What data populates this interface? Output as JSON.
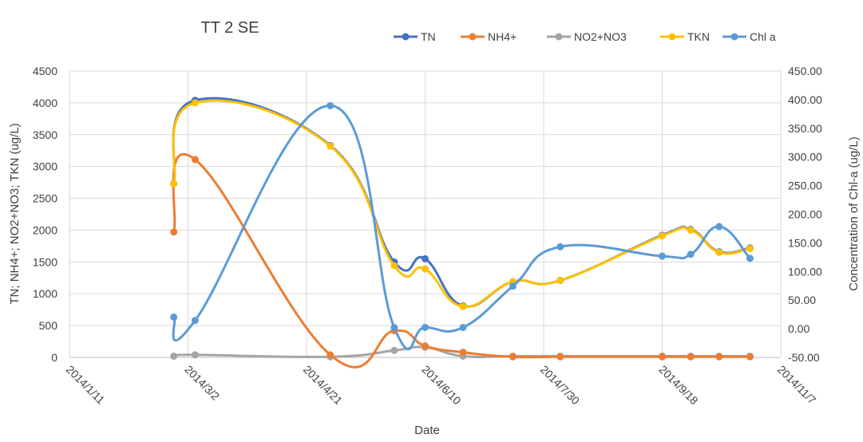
{
  "chart_data": {
    "type": "line",
    "title": "TT 2 SE",
    "xlabel": "Date",
    "ylabel": "TN; NH4+; NO2+NO3; TKN (ug/L)",
    "y2label": "Concentration of Chl-a (ug/L)",
    "x_ticks": [
      "2014/1/11",
      "2014/3/2",
      "2014/4/21",
      "2014/6/10",
      "2014/7/30",
      "2014/9/18",
      "2014/11/7"
    ],
    "ylim": [
      0,
      4500
    ],
    "y_ticks": [
      "0",
      "500",
      "1000",
      "1500",
      "2000",
      "2500",
      "3000",
      "3500",
      "4000",
      "4500"
    ],
    "y2lim": [
      -50,
      450
    ],
    "y2_ticks": [
      "-50.00",
      "0.00",
      "50.00",
      "100.00",
      "150.00",
      "200.00",
      "250.00",
      "300.00",
      "350.00",
      "400.00",
      "450.00"
    ],
    "grid": true,
    "legend_position": "top-right",
    "series": [
      {
        "name": "TN",
        "axis": "left",
        "color": "#4472C4",
        "points": [
          {
            "x": "2014/2/24",
            "y": 2730
          },
          {
            "x": "2014/3/5",
            "y": 4040
          },
          {
            "x": "2014/5/1",
            "y": 3330
          },
          {
            "x": "2014/5/28",
            "y": 1500
          },
          {
            "x": "2014/6/10",
            "y": 1550
          },
          {
            "x": "2014/6/26",
            "y": 810
          },
          {
            "x": "2014/7/17",
            "y": 1190
          },
          {
            "x": "2014/8/6",
            "y": 1210
          },
          {
            "x": "2014/9/18",
            "y": 1920
          },
          {
            "x": "2014/9/30",
            "y": 2010
          },
          {
            "x": "2014/10/12",
            "y": 1660
          },
          {
            "x": "2014/10/25",
            "y": 1720
          }
        ]
      },
      {
        "name": "NH4+",
        "axis": "left",
        "color": "#ED7D31",
        "points": [
          {
            "x": "2014/2/24",
            "y": 1970
          },
          {
            "x": "2014/3/5",
            "y": 3110
          },
          {
            "x": "2014/5/1",
            "y": 40
          },
          {
            "x": "2014/5/28",
            "y": 420
          },
          {
            "x": "2014/6/10",
            "y": 180
          },
          {
            "x": "2014/6/26",
            "y": 80
          },
          {
            "x": "2014/7/17",
            "y": 10
          },
          {
            "x": "2014/8/6",
            "y": 10
          },
          {
            "x": "2014/9/18",
            "y": 10
          },
          {
            "x": "2014/9/30",
            "y": 10
          },
          {
            "x": "2014/10/12",
            "y": 10
          },
          {
            "x": "2014/10/25",
            "y": 10
          }
        ]
      },
      {
        "name": "NO2+NO3",
        "axis": "left",
        "color": "#A5A5A5",
        "points": [
          {
            "x": "2014/2/24",
            "y": 20
          },
          {
            "x": "2014/3/5",
            "y": 40
          },
          {
            "x": "2014/5/1",
            "y": 10
          },
          {
            "x": "2014/5/28",
            "y": 110
          },
          {
            "x": "2014/6/10",
            "y": 160
          },
          {
            "x": "2014/6/26",
            "y": 20
          },
          {
            "x": "2014/7/17",
            "y": 20
          },
          {
            "x": "2014/8/6",
            "y": 20
          },
          {
            "x": "2014/9/18",
            "y": 20
          },
          {
            "x": "2014/9/30",
            "y": 20
          },
          {
            "x": "2014/10/12",
            "y": 20
          },
          {
            "x": "2014/10/25",
            "y": 20
          }
        ]
      },
      {
        "name": "TKN",
        "axis": "left",
        "color": "#FFC000",
        "points": [
          {
            "x": "2014/2/24",
            "y": 2730
          },
          {
            "x": "2014/3/5",
            "y": 4000
          },
          {
            "x": "2014/5/1",
            "y": 3320
          },
          {
            "x": "2014/5/28",
            "y": 1440
          },
          {
            "x": "2014/6/10",
            "y": 1390
          },
          {
            "x": "2014/6/26",
            "y": 800
          },
          {
            "x": "2014/7/17",
            "y": 1190
          },
          {
            "x": "2014/8/6",
            "y": 1210
          },
          {
            "x": "2014/9/18",
            "y": 1910
          },
          {
            "x": "2014/9/30",
            "y": 2000
          },
          {
            "x": "2014/10/12",
            "y": 1650
          },
          {
            "x": "2014/10/25",
            "y": 1710
          }
        ]
      },
      {
        "name": "Chl a",
        "axis": "right",
        "color": "#5B9BD5",
        "points": [
          {
            "x": "2014/2/24",
            "y": 20.4
          },
          {
            "x": "2014/3/5",
            "y": 14.5
          },
          {
            "x": "2014/5/1",
            "y": 389.5
          },
          {
            "x": "2014/5/28",
            "y": 2.0
          },
          {
            "x": "2014/6/10",
            "y": 2.4
          },
          {
            "x": "2014/6/26",
            "y": 2.3
          },
          {
            "x": "2014/7/17",
            "y": 74.4
          },
          {
            "x": "2014/8/6",
            "y": 143.2
          },
          {
            "x": "2014/9/18",
            "y": 126.8
          },
          {
            "x": "2014/9/30",
            "y": 130.0
          },
          {
            "x": "2014/10/12",
            "y": 178.5
          },
          {
            "x": "2014/10/25",
            "y": 123.0
          }
        ]
      }
    ]
  }
}
